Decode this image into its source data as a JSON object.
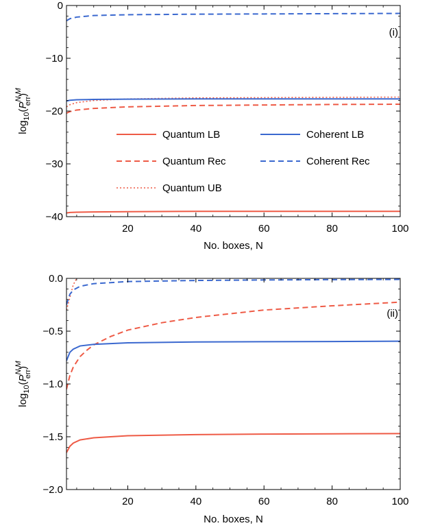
{
  "colors": {
    "quantum": "#EE5A45",
    "coherent": "#3A68CF"
  },
  "chart_data": [
    {
      "type": "line",
      "panel_tag": "(i)",
      "xlabel": "No. boxes, N",
      "ylabel": {
        "prefix": "log",
        "sub": "10",
        "open": "(",
        "main": "P",
        "sup": "N,M",
        "sub2": "err",
        "close": ")"
      },
      "xlim": [
        2,
        100
      ],
      "ylim": [
        -40,
        0
      ],
      "xticks": [
        20,
        40,
        60,
        80,
        100
      ],
      "xtick_labels": [
        "20",
        "40",
        "60",
        "80",
        "100"
      ],
      "yticks": [
        0,
        -10,
        -20,
        -30,
        -40
      ],
      "ytick_labels": [
        "0",
        "−10",
        "−20",
        "−30",
        "−40"
      ],
      "legend_placement": "center",
      "series": [
        {
          "name": "Quantum LB",
          "color_key": "quantum",
          "dash": "solid",
          "x": [
            2,
            3,
            5,
            10,
            20,
            40,
            60,
            80,
            100
          ],
          "y": [
            -39.3,
            -39.2,
            -39.15,
            -39.1,
            -39.05,
            -39.0,
            -39.0,
            -39.0,
            -39.0
          ]
        },
        {
          "name": "Quantum Rec",
          "color_key": "quantum",
          "dash": "dashed",
          "x": [
            2,
            3,
            5,
            10,
            20,
            40,
            60,
            80,
            100
          ],
          "y": [
            -20.4,
            -20.1,
            -19.8,
            -19.5,
            -19.2,
            -18.95,
            -18.85,
            -18.75,
            -18.7
          ]
        },
        {
          "name": "Quantum UB",
          "color_key": "quantum",
          "dash": "dotted",
          "x": [
            2,
            3,
            5,
            10,
            20,
            40,
            60,
            80,
            100
          ],
          "y": [
            -19.2,
            -18.8,
            -18.4,
            -18.0,
            -17.7,
            -17.5,
            -17.45,
            -17.4,
            -17.35
          ]
        },
        {
          "name": "Coherent LB",
          "color_key": "coherent",
          "dash": "solid",
          "x": [
            2,
            3,
            5,
            10,
            20,
            40,
            60,
            80,
            100
          ],
          "y": [
            -18.1,
            -17.95,
            -17.85,
            -17.8,
            -17.75,
            -17.7,
            -17.7,
            -17.7,
            -17.7
          ]
        },
        {
          "name": "Coherent Rec",
          "color_key": "coherent",
          "dash": "dashed",
          "x": [
            2,
            3,
            5,
            10,
            20,
            40,
            60,
            80,
            100
          ],
          "y": [
            -2.9,
            -2.5,
            -2.2,
            -1.9,
            -1.75,
            -1.65,
            -1.6,
            -1.55,
            -1.5
          ]
        }
      ]
    },
    {
      "type": "line",
      "panel_tag": "(ii)",
      "xlabel": "No. boxes, N",
      "ylabel": {
        "prefix": "log",
        "sub": "10",
        "open": "(",
        "main": "P",
        "sup": "N,M",
        "sub2": "err",
        "close": ")"
      },
      "xlim": [
        2,
        100
      ],
      "ylim": [
        -2.0,
        0.0
      ],
      "xticks": [
        20,
        40,
        60,
        80,
        100
      ],
      "xtick_labels": [
        "20",
        "40",
        "60",
        "80",
        "100"
      ],
      "yticks": [
        0.0,
        -0.5,
        -1.0,
        -1.5,
        -2.0
      ],
      "ytick_labels": [
        "0.0",
        "−0.5",
        "−1.0",
        "−1.5",
        "−2.0"
      ],
      "series": [
        {
          "name": "Quantum LB",
          "color_key": "quantum",
          "dash": "solid",
          "x": [
            2,
            3,
            4,
            6,
            10,
            20,
            40,
            60,
            80,
            100
          ],
          "y": [
            -1.65,
            -1.59,
            -1.56,
            -1.53,
            -1.51,
            -1.49,
            -1.48,
            -1.475,
            -1.472,
            -1.47
          ]
        },
        {
          "name": "Quantum Rec",
          "color_key": "quantum",
          "dash": "dashed",
          "x": [
            2,
            3,
            4,
            6,
            8,
            10,
            15,
            20,
            30,
            40,
            60,
            80,
            100
          ],
          "y": [
            -1.05,
            -0.92,
            -0.84,
            -0.74,
            -0.68,
            -0.63,
            -0.55,
            -0.49,
            -0.42,
            -0.37,
            -0.3,
            -0.26,
            -0.225
          ]
        },
        {
          "name": "Quantum UB",
          "color_key": "quantum",
          "dash": "dotted",
          "x": [
            2,
            3,
            4,
            5
          ],
          "y": [
            -0.3,
            -0.18,
            -0.06,
            0.0
          ]
        },
        {
          "name": "Coherent LB",
          "color_key": "coherent",
          "dash": "solid",
          "x": [
            2,
            3,
            4,
            6,
            10,
            20,
            40,
            60,
            80,
            100
          ],
          "y": [
            -0.78,
            -0.7,
            -0.67,
            -0.64,
            -0.625,
            -0.61,
            -0.602,
            -0.6,
            -0.598,
            -0.595
          ]
        },
        {
          "name": "Coherent Rec",
          "color_key": "coherent",
          "dash": "dashed",
          "x": [
            2,
            3,
            4,
            6,
            10,
            20,
            40,
            60,
            80,
            100
          ],
          "y": [
            -0.25,
            -0.15,
            -0.11,
            -0.075,
            -0.05,
            -0.03,
            -0.02,
            -0.015,
            -0.012,
            -0.01
          ]
        }
      ]
    }
  ]
}
